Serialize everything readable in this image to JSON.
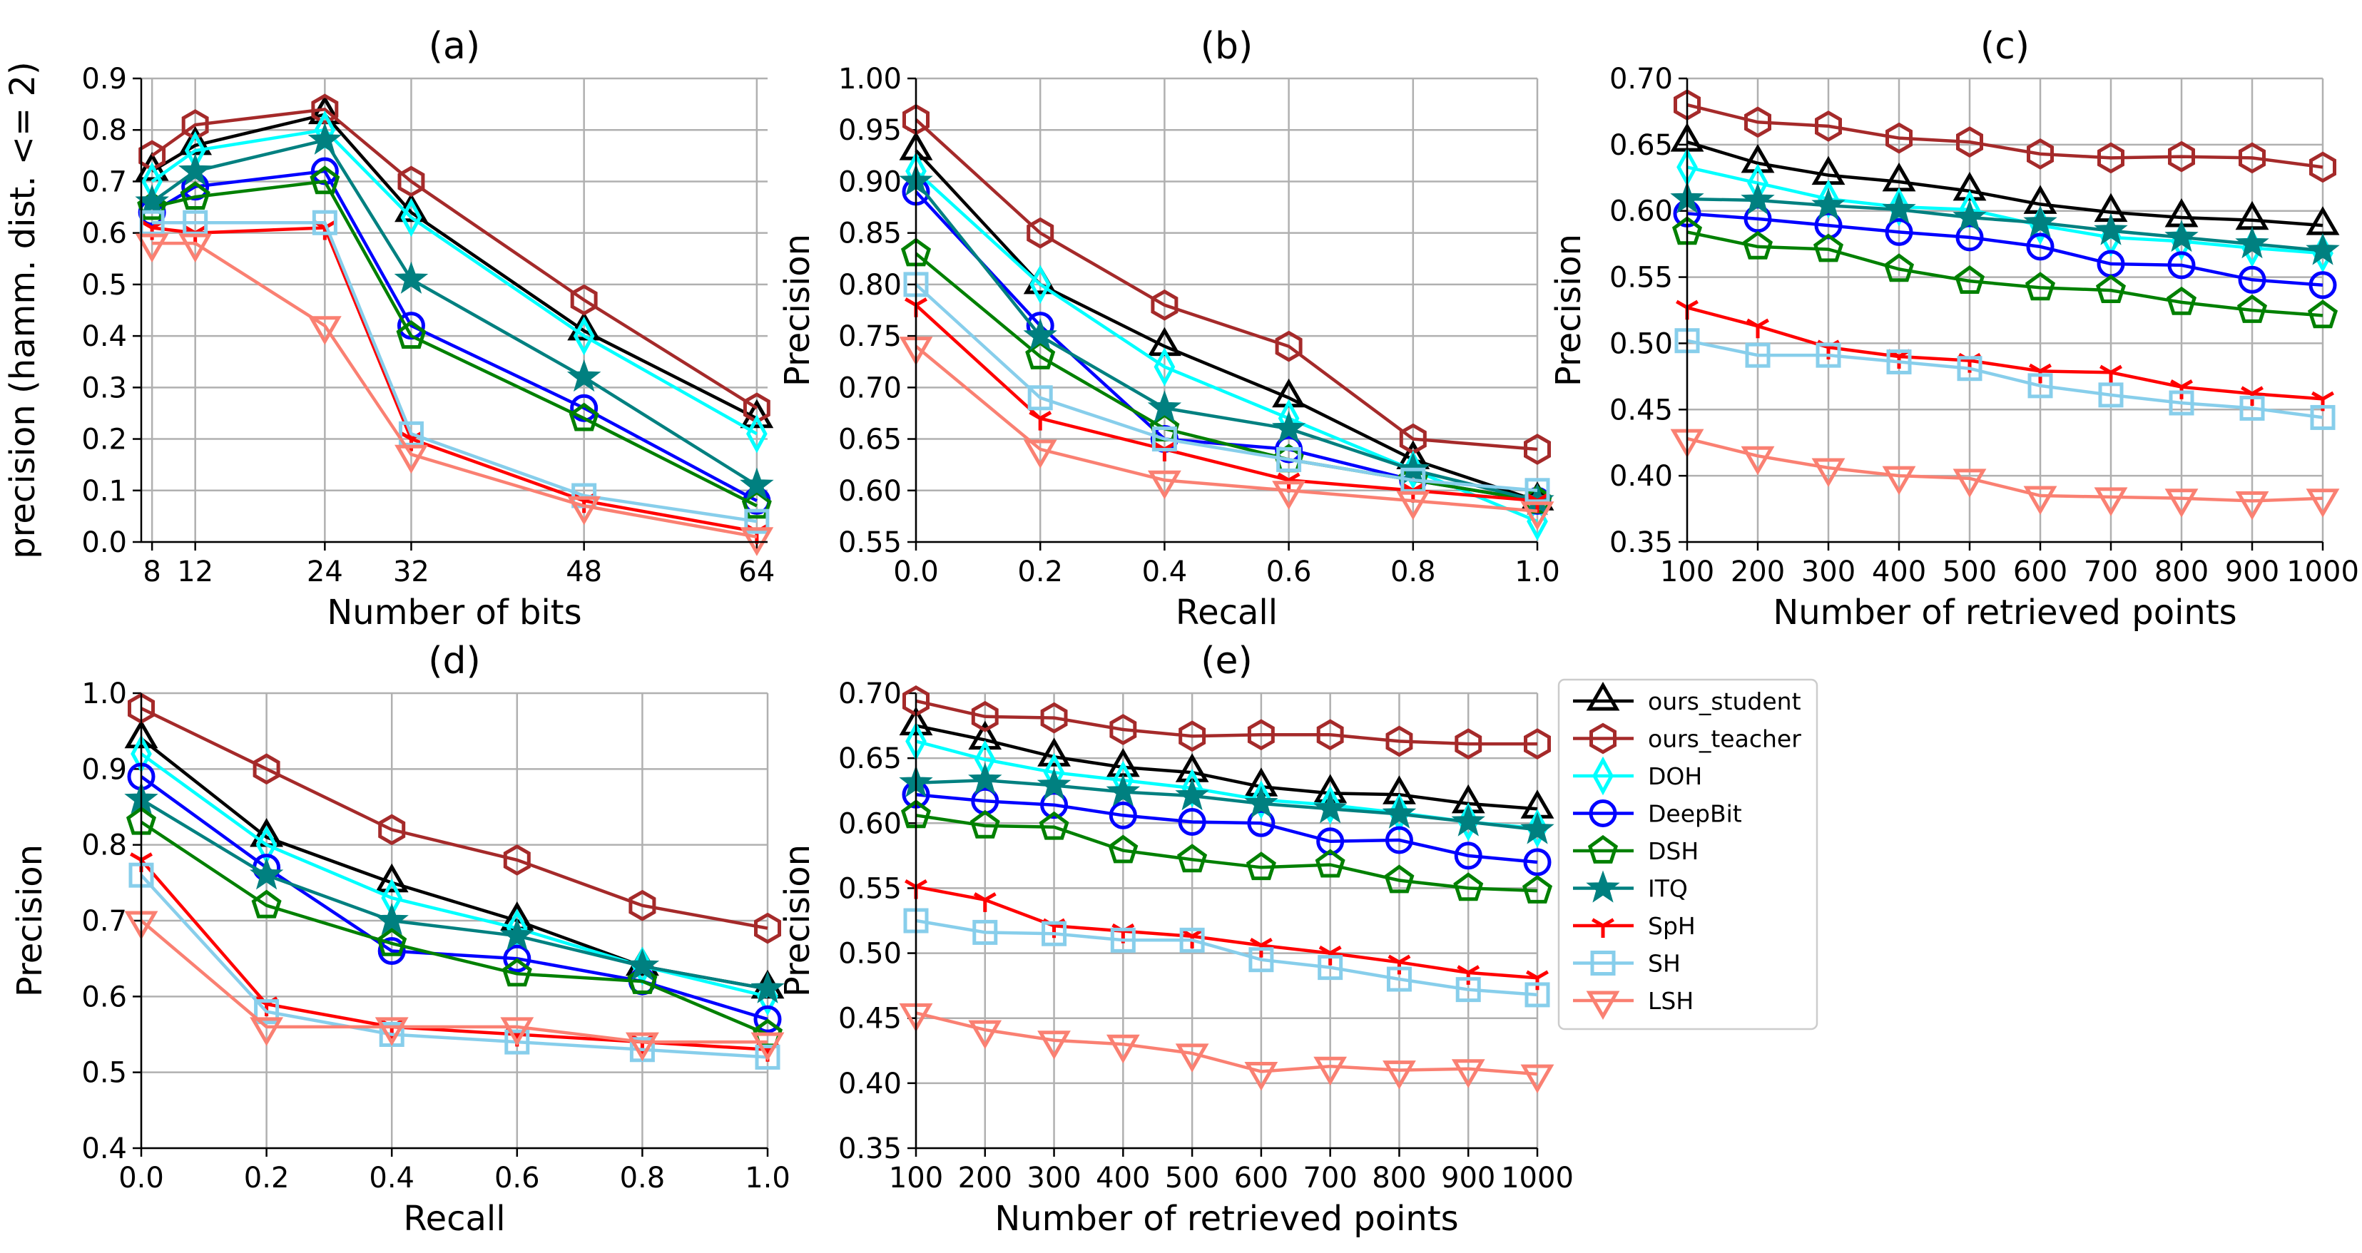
{
  "series_styles": [
    {
      "name": "ours_student",
      "color": "#000000",
      "marker": "triangle-up"
    },
    {
      "name": "ours_teacher",
      "color": "#a52a2a",
      "marker": "hexagon"
    },
    {
      "name": "DOH",
      "color": "#00ffff",
      "marker": "thin-diamond"
    },
    {
      "name": "DeepBit",
      "color": "#0000ff",
      "marker": "circle"
    },
    {
      "name": "DSH",
      "color": "#008000",
      "marker": "pentagon"
    },
    {
      "name": "ITQ",
      "color": "#008080",
      "marker": "star"
    },
    {
      "name": "SpH",
      "color": "#ff0000",
      "marker": "tri-down"
    },
    {
      "name": "SH",
      "color": "#87ceeb",
      "marker": "square"
    },
    {
      "name": "LSH",
      "color": "#fa8072",
      "marker": "triangle-down"
    }
  ],
  "chart_data": [
    {
      "type": "line",
      "title": "(a)",
      "xlabel": "Number of bits",
      "ylabel": "precision (hamm. dist. <= 2)",
      "x": [
        8,
        12,
        24,
        32,
        48,
        64
      ],
      "xticks": [
        8,
        12,
        24,
        32,
        48,
        64
      ],
      "xlim": [
        7,
        65
      ],
      "ylim": [
        0,
        0.9
      ],
      "yticks": [
        "0.0",
        "0.1",
        "0.2",
        "0.3",
        "0.4",
        "0.5",
        "0.6",
        "0.7",
        "0.8",
        "0.9"
      ],
      "grid": true,
      "series": [
        {
          "name": "ours_student",
          "values": [
            0.72,
            0.77,
            0.83,
            0.64,
            0.41,
            0.24
          ]
        },
        {
          "name": "ours_teacher",
          "values": [
            0.75,
            0.81,
            0.84,
            0.7,
            0.47,
            0.26
          ]
        },
        {
          "name": "DOH",
          "values": [
            0.7,
            0.76,
            0.8,
            0.63,
            0.4,
            0.21
          ]
        },
        {
          "name": "DeepBit",
          "values": [
            0.64,
            0.69,
            0.72,
            0.42,
            0.26,
            0.08
          ]
        },
        {
          "name": "DSH",
          "values": [
            0.65,
            0.67,
            0.7,
            0.4,
            0.24,
            0.07
          ]
        },
        {
          "name": "ITQ",
          "values": [
            0.66,
            0.72,
            0.78,
            0.51,
            0.32,
            0.11
          ]
        },
        {
          "name": "SpH",
          "values": [
            0.61,
            0.6,
            0.61,
            0.2,
            0.08,
            0.02
          ]
        },
        {
          "name": "SH",
          "values": [
            0.62,
            0.62,
            0.62,
            0.21,
            0.09,
            0.04
          ]
        },
        {
          "name": "LSH",
          "values": [
            0.58,
            0.58,
            0.42,
            0.17,
            0.07,
            0.01
          ]
        }
      ]
    },
    {
      "type": "line",
      "title": "(b)",
      "xlabel": "Recall",
      "ylabel": "Precision",
      "x": [
        0.0,
        0.2,
        0.4,
        0.6,
        0.8,
        1.0
      ],
      "xticks": [
        "0.0",
        "0.2",
        "0.4",
        "0.6",
        "0.8",
        "1.0"
      ],
      "xlim": [
        0,
        1
      ],
      "ylim": [
        0.55,
        1.0
      ],
      "yticks": [
        "0.55",
        "0.60",
        "0.65",
        "0.70",
        "0.75",
        "0.80",
        "0.85",
        "0.90",
        "0.95",
        "1.00"
      ],
      "grid": true,
      "series": [
        {
          "name": "ours_student",
          "values": [
            0.93,
            0.8,
            0.74,
            0.69,
            0.63,
            0.59
          ]
        },
        {
          "name": "ours_teacher",
          "values": [
            0.96,
            0.85,
            0.78,
            0.74,
            0.65,
            0.64
          ]
        },
        {
          "name": "DOH",
          "values": [
            0.91,
            0.8,
            0.72,
            0.67,
            0.62,
            0.57
          ]
        },
        {
          "name": "DeepBit",
          "values": [
            0.89,
            0.76,
            0.65,
            0.64,
            0.61,
            0.59
          ]
        },
        {
          "name": "DSH",
          "values": [
            0.83,
            0.73,
            0.66,
            0.63,
            0.61,
            0.59
          ]
        },
        {
          "name": "ITQ",
          "values": [
            0.9,
            0.75,
            0.68,
            0.66,
            0.62,
            0.59
          ]
        },
        {
          "name": "SpH",
          "values": [
            0.78,
            0.67,
            0.64,
            0.61,
            0.6,
            0.59
          ]
        },
        {
          "name": "SH",
          "values": [
            0.8,
            0.69,
            0.65,
            0.63,
            0.61,
            0.6
          ]
        },
        {
          "name": "LSH",
          "values": [
            0.74,
            0.64,
            0.61,
            0.6,
            0.59,
            0.58
          ]
        }
      ]
    },
    {
      "type": "line",
      "title": "(c)",
      "xlabel": "Number of retrieved points",
      "ylabel": "Precision",
      "x": [
        100,
        200,
        300,
        400,
        500,
        600,
        700,
        800,
        900,
        1000
      ],
      "xticks": [
        100,
        200,
        300,
        400,
        500,
        600,
        700,
        800,
        900,
        1000
      ],
      "xlim": [
        100,
        1000
      ],
      "ylim": [
        0.35,
        0.7
      ],
      "yticks": [
        "0.35",
        "0.40",
        "0.45",
        "0.50",
        "0.55",
        "0.60",
        "0.65",
        "0.70"
      ],
      "grid": true,
      "series": [
        {
          "name": "ours_student",
          "values": [
            0.652,
            0.636,
            0.627,
            0.622,
            0.615,
            0.605,
            0.599,
            0.595,
            0.593,
            0.589
          ]
        },
        {
          "name": "ours_teacher",
          "values": [
            0.68,
            0.667,
            0.664,
            0.655,
            0.652,
            0.643,
            0.64,
            0.641,
            0.64,
            0.633
          ]
        },
        {
          "name": "DOH",
          "values": [
            0.633,
            0.621,
            0.609,
            0.603,
            0.601,
            0.589,
            0.58,
            0.577,
            0.572,
            0.568
          ]
        },
        {
          "name": "DeepBit",
          "values": [
            0.598,
            0.594,
            0.589,
            0.584,
            0.58,
            0.573,
            0.56,
            0.559,
            0.548,
            0.544
          ]
        },
        {
          "name": "DSH",
          "values": [
            0.584,
            0.573,
            0.571,
            0.556,
            0.547,
            0.542,
            0.54,
            0.531,
            0.525,
            0.521
          ]
        },
        {
          "name": "ITQ",
          "values": [
            0.609,
            0.608,
            0.604,
            0.601,
            0.595,
            0.591,
            0.585,
            0.58,
            0.575,
            0.57
          ]
        },
        {
          "name": "SpH",
          "values": [
            0.527,
            0.513,
            0.497,
            0.49,
            0.487,
            0.479,
            0.478,
            0.467,
            0.462,
            0.458
          ]
        },
        {
          "name": "SH",
          "values": [
            0.502,
            0.491,
            0.491,
            0.486,
            0.481,
            0.468,
            0.461,
            0.455,
            0.451,
            0.444
          ]
        },
        {
          "name": "LSH",
          "values": [
            0.428,
            0.415,
            0.406,
            0.4,
            0.398,
            0.385,
            0.384,
            0.383,
            0.381,
            0.383
          ]
        }
      ]
    },
    {
      "type": "line",
      "title": "(d)",
      "xlabel": "Recall",
      "ylabel": "Precision",
      "x": [
        0.0,
        0.2,
        0.4,
        0.6,
        0.8,
        1.0
      ],
      "xticks": [
        "0.0",
        "0.2",
        "0.4",
        "0.6",
        "0.8",
        "1.0"
      ],
      "xlim": [
        0,
        1
      ],
      "ylim": [
        0.4,
        1.0
      ],
      "yticks": [
        "0.4",
        "0.5",
        "0.6",
        "0.7",
        "0.8",
        "0.9",
        "1.0"
      ],
      "grid": true,
      "series": [
        {
          "name": "ours_student",
          "values": [
            0.94,
            0.81,
            0.75,
            0.7,
            0.64,
            0.61
          ]
        },
        {
          "name": "ours_teacher",
          "values": [
            0.98,
            0.9,
            0.82,
            0.78,
            0.72,
            0.69
          ]
        },
        {
          "name": "DOH",
          "values": [
            0.92,
            0.8,
            0.73,
            0.69,
            0.64,
            0.6
          ]
        },
        {
          "name": "DeepBit",
          "values": [
            0.89,
            0.77,
            0.66,
            0.65,
            0.62,
            0.57
          ]
        },
        {
          "name": "DSH",
          "values": [
            0.83,
            0.72,
            0.67,
            0.63,
            0.62,
            0.55
          ]
        },
        {
          "name": "ITQ",
          "values": [
            0.86,
            0.76,
            0.7,
            0.68,
            0.64,
            0.61
          ]
        },
        {
          "name": "SpH",
          "values": [
            0.78,
            0.59,
            0.56,
            0.55,
            0.54,
            0.53
          ]
        },
        {
          "name": "SH",
          "values": [
            0.76,
            0.58,
            0.55,
            0.54,
            0.53,
            0.52
          ]
        },
        {
          "name": "LSH",
          "values": [
            0.7,
            0.56,
            0.56,
            0.56,
            0.54,
            0.54
          ]
        }
      ]
    },
    {
      "type": "line",
      "title": "(e)",
      "xlabel": "Number of retrieved points",
      "ylabel": "Precision",
      "x": [
        100,
        200,
        300,
        400,
        500,
        600,
        700,
        800,
        900,
        1000
      ],
      "xticks": [
        100,
        200,
        300,
        400,
        500,
        600,
        700,
        800,
        900,
        1000
      ],
      "xlim": [
        100,
        1000
      ],
      "ylim": [
        0.35,
        0.7
      ],
      "yticks": [
        "0.35",
        "0.40",
        "0.45",
        "0.50",
        "0.55",
        "0.60",
        "0.65",
        "0.70"
      ],
      "grid": true,
      "series": [
        {
          "name": "ours_student",
          "values": [
            0.675,
            0.664,
            0.651,
            0.643,
            0.639,
            0.628,
            0.623,
            0.622,
            0.615,
            0.611
          ]
        },
        {
          "name": "ours_teacher",
          "values": [
            0.694,
            0.682,
            0.681,
            0.672,
            0.667,
            0.668,
            0.668,
            0.663,
            0.661,
            0.661
          ]
        },
        {
          "name": "DOH",
          "values": [
            0.663,
            0.649,
            0.639,
            0.633,
            0.627,
            0.618,
            0.614,
            0.608,
            0.601,
            0.596
          ]
        },
        {
          "name": "DeepBit",
          "values": [
            0.622,
            0.617,
            0.614,
            0.606,
            0.601,
            0.6,
            0.586,
            0.587,
            0.575,
            0.57
          ]
        },
        {
          "name": "DSH",
          "values": [
            0.606,
            0.598,
            0.597,
            0.579,
            0.572,
            0.566,
            0.568,
            0.556,
            0.55,
            0.548
          ]
        },
        {
          "name": "ITQ",
          "values": [
            0.631,
            0.633,
            0.629,
            0.624,
            0.621,
            0.615,
            0.611,
            0.607,
            0.601,
            0.595
          ]
        },
        {
          "name": "SpH",
          "values": [
            0.551,
            0.541,
            0.521,
            0.517,
            0.513,
            0.506,
            0.5,
            0.493,
            0.485,
            0.481
          ]
        },
        {
          "name": "SH",
          "values": [
            0.525,
            0.516,
            0.515,
            0.51,
            0.51,
            0.495,
            0.489,
            0.48,
            0.472,
            0.468
          ]
        },
        {
          "name": "LSH",
          "values": [
            0.454,
            0.441,
            0.433,
            0.43,
            0.423,
            0.409,
            0.413,
            0.41,
            0.411,
            0.407
          ]
        }
      ]
    }
  ]
}
